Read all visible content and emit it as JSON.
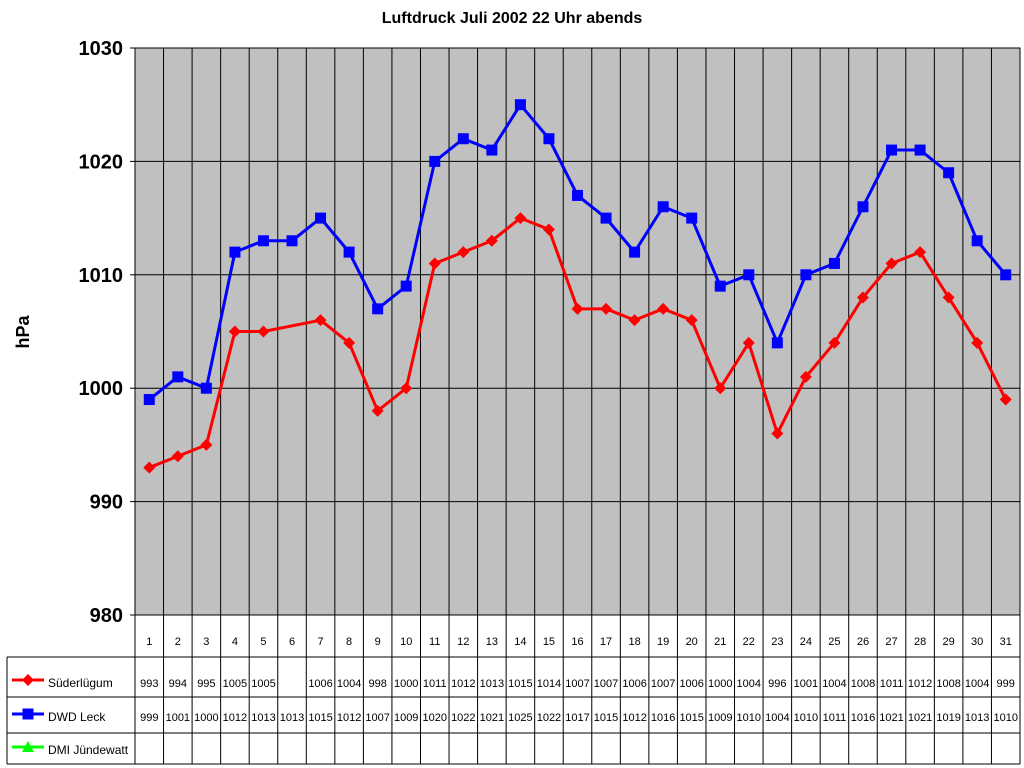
{
  "chart_data": {
    "type": "line",
    "title": "Luftdruck Juli 2002 22 Uhr abends",
    "xlabel": "",
    "ylabel": "hPa",
    "ylim": [
      980,
      1030
    ],
    "yticks": [
      980,
      990,
      1000,
      1010,
      1020,
      1030
    ],
    "grid": true,
    "legend": "data-table-left",
    "categories": [
      "1",
      "2",
      "3",
      "4",
      "5",
      "6",
      "7",
      "8",
      "9",
      "10",
      "11",
      "12",
      "13",
      "14",
      "15",
      "16",
      "17",
      "18",
      "19",
      "20",
      "21",
      "22",
      "23",
      "24",
      "25",
      "26",
      "27",
      "28",
      "29",
      "30",
      "31"
    ],
    "series": [
      {
        "name": "Süderlügum",
        "color": "#ff0000",
        "marker": "diamond",
        "values": [
          993,
          994,
          995,
          1005,
          1005,
          null,
          1006,
          1004,
          998,
          1000,
          1011,
          1012,
          1013,
          1015,
          1014,
          1007,
          1007,
          1006,
          1007,
          1006,
          1000,
          1004,
          996,
          1001,
          1004,
          1008,
          1011,
          1012,
          1008,
          1004,
          999
        ]
      },
      {
        "name": "DWD Leck",
        "color": "#0000ff",
        "marker": "square",
        "values": [
          999,
          1001,
          1000,
          1012,
          1013,
          1013,
          1015,
          1012,
          1007,
          1009,
          1020,
          1022,
          1021,
          1025,
          1022,
          1017,
          1015,
          1012,
          1016,
          1015,
          1009,
          1010,
          1004,
          1010,
          1011,
          1016,
          1021,
          1021,
          1019,
          1013,
          1010
        ]
      },
      {
        "name": "DMI Jündewatt",
        "color": "#00ff00",
        "marker": "triangle",
        "values": [
          null,
          null,
          null,
          null,
          null,
          null,
          null,
          null,
          null,
          null,
          null,
          null,
          null,
          null,
          null,
          null,
          null,
          null,
          null,
          null,
          null,
          null,
          null,
          null,
          null,
          null,
          null,
          null,
          null,
          null,
          null
        ]
      }
    ]
  }
}
